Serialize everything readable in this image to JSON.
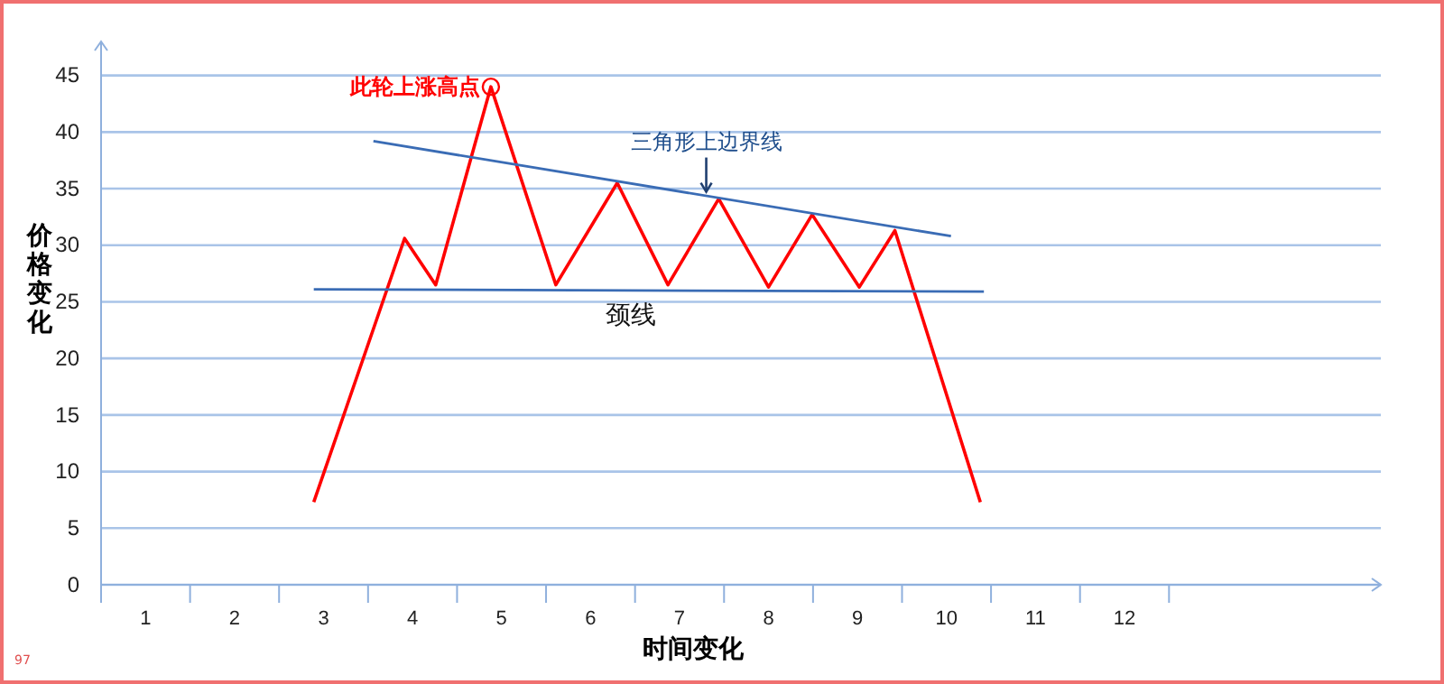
{
  "chart_data": {
    "type": "line",
    "xlabel": "时间变化",
    "ylabel": "价格变化",
    "xlim": [
      0.5,
      14.88
    ],
    "ylim": [
      0,
      48
    ],
    "xticks": [
      1,
      2,
      3,
      4,
      5,
      6,
      7,
      8,
      9,
      10,
      11,
      12
    ],
    "yticks": [
      0,
      5,
      10,
      15,
      20,
      25,
      30,
      35,
      40,
      45
    ],
    "grid": "y",
    "marker": "none",
    "line_style": "solid",
    "series": [
      {
        "color": "#ff0000",
        "x": [
          2.89,
          3.91,
          4.26,
          4.88,
          5.61,
          6.3,
          6.87,
          7.44,
          8.0,
          8.49,
          9.02,
          9.42,
          10.38
        ],
        "values": [
          7.3,
          30.6,
          26.5,
          44,
          26.5,
          35.5,
          26.5,
          34.1,
          26.3,
          32.7,
          26.3,
          31.3,
          7.3
        ]
      },
      {
        "color": "#3a6cb5",
        "x": [
          2.89,
          10.42
        ],
        "values": [
          26.1,
          25.9
        ]
      },
      {
        "color": "#3a6cb5",
        "x": [
          3.56,
          10.05
        ],
        "values": [
          39.2,
          30.8
        ]
      }
    ],
    "annotations": [
      {
        "text": "此轮上涨高点",
        "x": 4.88,
        "y": 44
      },
      {
        "text": "三角形上边界线",
        "x": 7.3,
        "y": 34.4
      },
      {
        "text": "颈线",
        "x": 6.45,
        "y": 26
      },
      "97"
    ]
  }
}
